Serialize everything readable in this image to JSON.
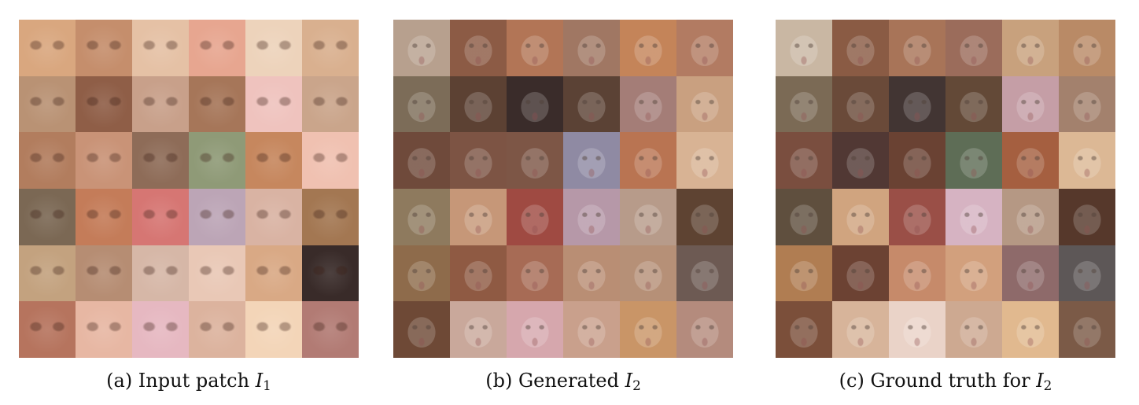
{
  "panels": [
    {
      "caption_prefix": "(a) Input patch ",
      "symbol": "I",
      "subscript": "1",
      "caption_suffix": "",
      "tile_colors": [
        [
          "#d9a77f",
          "#c58e6c",
          "#e5c1a5",
          "#e7a690",
          "#edd3bb",
          "#d9b08f"
        ],
        [
          "#b99274",
          "#8f5e47",
          "#c8a08a",
          "#a67659",
          "#efc3be",
          "#caa58b"
        ],
        [
          "#b27d5e",
          "#c99377",
          "#8e6c58",
          "#8f9a77",
          "#c6875e",
          "#f0c1b1"
        ],
        [
          "#7b6854",
          "#c47c59",
          "#d67673",
          "#bca5b6",
          "#d9b3a3",
          "#a37752"
        ],
        [
          "#c3a27f",
          "#b68d73",
          "#d6b7a7",
          "#e9c8b6",
          "#d9a985",
          "#392b29"
        ],
        [
          "#b6745e",
          "#e7b7a3",
          "#e6b8c1",
          "#dcb39e",
          "#f3d5b8",
          "#b27b74"
        ]
      ]
    },
    {
      "caption_prefix": "(b) Generated ",
      "symbol": "I",
      "subscript": "2",
      "caption_suffix": "",
      "tile_colors": [
        [
          "#b7a08e",
          "#8c5b45",
          "#b27556",
          "#a07763",
          "#c48459",
          "#b27b62"
        ],
        [
          "#7c6c58",
          "#5c4133",
          "#3a2c2a",
          "#5b4235",
          "#a47d77",
          "#c9a080"
        ],
        [
          "#6f4a3b",
          "#7d5444",
          "#7d5646",
          "#8f8aa3",
          "#b97452",
          "#d8b394"
        ],
        [
          "#8e7a5e",
          "#c69778",
          "#9f4a42",
          "#b698a8",
          "#b79b8a",
          "#5e4332"
        ],
        [
          "#8e6b4b",
          "#8f5a43",
          "#a76b55",
          "#b98e74",
          "#b69077",
          "#6d5a53"
        ],
        [
          "#6e4936",
          "#c9a89b",
          "#d6a7ad",
          "#c9a08c",
          "#c99567",
          "#b48b7d"
        ]
      ]
    },
    {
      "caption_prefix": "(c) Ground truth for ",
      "symbol": "I",
      "subscript": "2",
      "caption_suffix": "",
      "tile_colors": [
        [
          "#c9b7a3",
          "#8a5b44",
          "#a87458",
          "#9b6c5b",
          "#c8a17d",
          "#b98a66"
        ],
        [
          "#7b6a55",
          "#6a4a39",
          "#423533",
          "#634937",
          "#c59ea6",
          "#a3816d"
        ],
        [
          "#7a4e3f",
          "#513834",
          "#6a4233",
          "#5e6d56",
          "#a55f40",
          "#dcb895"
        ],
        [
          "#5f4f3e",
          "#d0a47f",
          "#9a4f47",
          "#d6b3c2",
          "#b59884",
          "#56382b"
        ],
        [
          "#b07d52",
          "#6c4233",
          "#c68a6a",
          "#d2a07d",
          "#8e6a6a",
          "#5d5757"
        ],
        [
          "#7b4f3a",
          "#d7b49a",
          "#ead3c8",
          "#cda991",
          "#e1b98f",
          "#7b5a47"
        ]
      ]
    }
  ]
}
